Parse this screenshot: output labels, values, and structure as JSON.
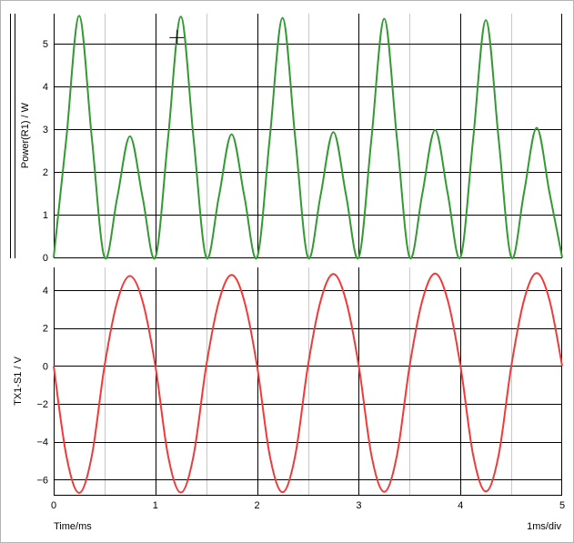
{
  "footer": {
    "time_axis_label": "Time/ms",
    "timebase_label": "1ms/div"
  },
  "cursor": {
    "name": "crosshair-cursor",
    "time_ms": 1.21,
    "value": 5.15
  },
  "colors": {
    "power_trace": "#339933",
    "voltage_trace": "#f03a3a",
    "major_grid": "#000000",
    "minor_grid": "#c8c8c8"
  },
  "chart_data": [
    {
      "type": "line",
      "title": "",
      "xlabel": "",
      "ylabel": "Power(R1) / W",
      "xlim": [
        0,
        5
      ],
      "ylim": [
        0,
        5.7
      ],
      "yticks": [
        0,
        1,
        2,
        3,
        4,
        5
      ],
      "ytick_labels": [
        "0",
        "1",
        "2",
        "3",
        "4",
        "5"
      ],
      "grid": true,
      "series": [
        {
          "name": "",
          "color": "#339933",
          "x": [
            0,
            0.125,
            0.25,
            0.375,
            0.5,
            0.625,
            0.75,
            0.875,
            1.0,
            1.125,
            1.25,
            1.375,
            1.5,
            1.625,
            1.75,
            1.875,
            2.0,
            2.125,
            2.25,
            2.375,
            2.5,
            2.625,
            2.75,
            2.875,
            3.0,
            3.125,
            3.25,
            3.375,
            3.5,
            3.625,
            3.75,
            3.875,
            4.0,
            4.125,
            4.25,
            4.375,
            4.5,
            4.625,
            4.75,
            4.875,
            5.0
          ],
          "y": [
            0,
            2.8,
            5.65,
            2.8,
            0,
            1.4,
            2.83,
            1.4,
            0,
            2.8,
            5.63,
            2.8,
            0,
            1.43,
            2.88,
            1.43,
            0,
            2.8,
            5.6,
            2.8,
            0,
            1.46,
            2.93,
            1.46,
            0,
            2.79,
            5.58,
            2.79,
            0,
            1.49,
            2.98,
            1.49,
            0,
            2.78,
            5.55,
            2.78,
            0,
            1.52,
            3.03,
            1.52,
            0
          ]
        }
      ]
    },
    {
      "type": "line",
      "title": "",
      "xlabel": "",
      "ylabel": "TX1-S1 / V",
      "xlim": [
        0,
        5
      ],
      "ylim": [
        -6.8,
        5.2
      ],
      "yticks": [
        -6,
        -4,
        -2,
        0,
        2,
        4
      ],
      "ytick_labels": [
        "−6",
        "−4",
        "−2",
        "0",
        "2",
        "4"
      ],
      "xticks": [
        0,
        1,
        2,
        3,
        4,
        5
      ],
      "xtick_labels": [
        "0",
        "1",
        "2",
        "3",
        "4",
        "5"
      ],
      "grid": true,
      "series": [
        {
          "name": "",
          "color": "#f03a3a",
          "x": [
            0,
            0.125,
            0.25,
            0.375,
            0.5,
            0.625,
            0.75,
            0.875,
            1.0,
            1.125,
            1.25,
            1.375,
            1.5,
            1.625,
            1.75,
            1.875,
            2.0,
            2.125,
            2.25,
            2.375,
            2.5,
            2.625,
            2.75,
            2.875,
            3.0,
            3.125,
            3.25,
            3.375,
            3.5,
            3.625,
            3.75,
            3.875,
            4.0,
            4.125,
            4.25,
            4.375,
            4.5,
            4.625,
            4.75,
            4.875,
            5.0
          ],
          "y": [
            0,
            -4.75,
            -6.7,
            -4.75,
            0,
            3.4,
            4.75,
            3.4,
            0,
            -4.75,
            -6.68,
            -4.75,
            0,
            3.42,
            4.8,
            3.42,
            0,
            -4.74,
            -6.66,
            -4.74,
            0,
            3.44,
            4.85,
            3.44,
            0,
            -4.73,
            -6.64,
            -4.73,
            0,
            3.46,
            4.88,
            3.46,
            0,
            -4.72,
            -6.62,
            -4.72,
            0,
            3.48,
            4.9,
            3.48,
            0
          ]
        }
      ]
    }
  ]
}
